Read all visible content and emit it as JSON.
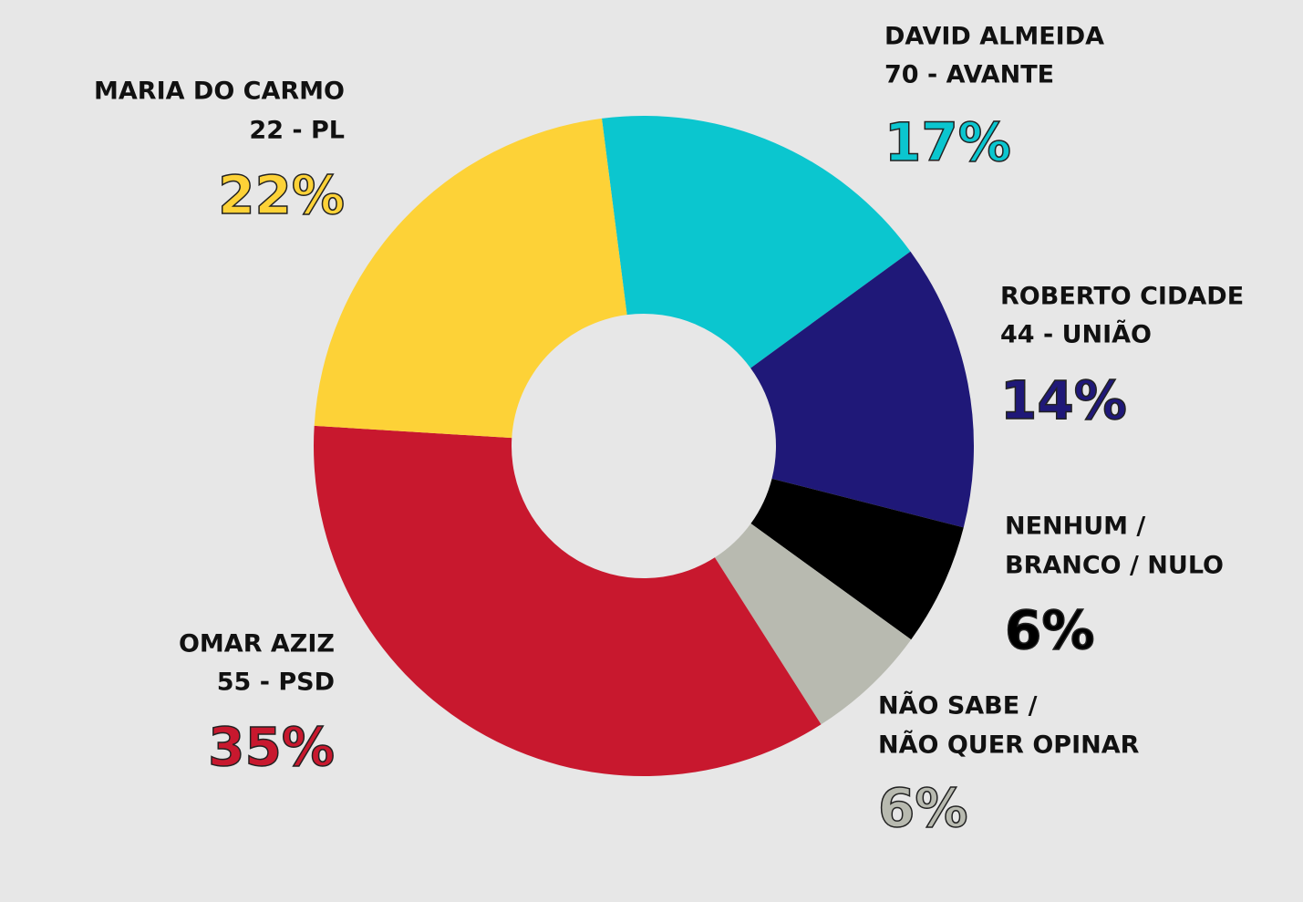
{
  "chart_data": {
    "type": "donut",
    "categories": [
      [
        "DAVID ALMEIDA",
        "70 - AVANTE"
      ],
      [
        "ROBERTO CIDADE",
        "44 - UNIÃO"
      ],
      [
        "NENHUM /",
        "BRANCO / NULO"
      ],
      [
        "NÃO SABE /",
        "NÃO QUER OPINAR"
      ],
      [
        "OMAR AZIZ",
        "55 - PSD"
      ],
      [
        "MARIA DO CARMO",
        "22 - PL"
      ]
    ],
    "values": [
      17,
      14,
      6,
      6,
      35,
      22
    ],
    "value_labels": [
      "17%",
      "14%",
      "6%",
      "6%",
      "35%",
      "22%"
    ],
    "colors": [
      "#0bc6cf",
      "#1f1878",
      "#000000",
      "#b8bab0",
      "#c8182e",
      "#fdd237"
    ]
  }
}
